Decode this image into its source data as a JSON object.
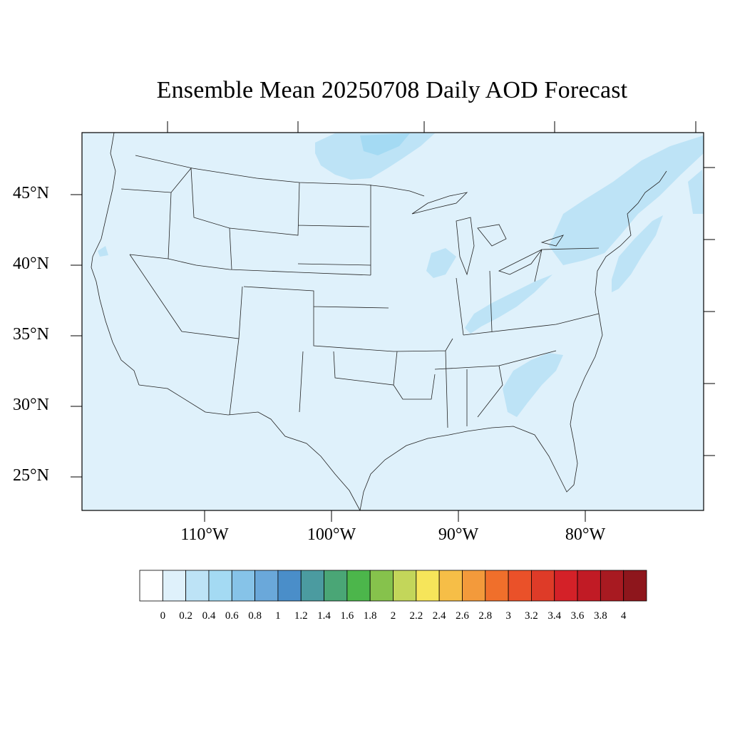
{
  "title": "Ensemble Mean 20250708 Daily AOD Forecast",
  "map": {
    "background_color": "#dff1fb",
    "enhanced_color": "#bde3f6",
    "peak_color": "#a4daf3",
    "lat_labels": [
      "45°N",
      "40°N",
      "35°N",
      "30°N",
      "25°N"
    ],
    "lon_labels": [
      "110°W",
      "100°W",
      "90°W",
      "80°W"
    ]
  },
  "colorbar": {
    "labels": [
      "0",
      "0.2",
      "0.4",
      "0.6",
      "0.8",
      "1",
      "1.2",
      "1.4",
      "1.6",
      "1.8",
      "2",
      "2.2",
      "2.4",
      "2.6",
      "2.8",
      "3",
      "3.2",
      "3.4",
      "3.6",
      "3.8",
      "4"
    ],
    "colors": [
      "#ffffff",
      "#dff1fb",
      "#bde3f6",
      "#a4daf3",
      "#86c3e8",
      "#6aa8da",
      "#4a8ec9",
      "#4b9ba0",
      "#4aa676",
      "#4cb64b",
      "#86c24c",
      "#c3d65a",
      "#f6e55a",
      "#f6be47",
      "#f39a3b",
      "#f06f2b",
      "#ea5129",
      "#de3b28",
      "#d42128",
      "#c11b25",
      "#a81a21",
      "#8e161c"
    ]
  }
}
